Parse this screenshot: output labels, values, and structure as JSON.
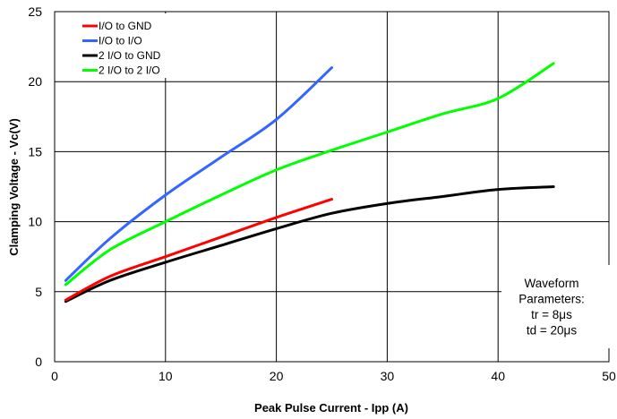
{
  "chart_data": {
    "type": "line",
    "xlabel": "Peak Pulse Current - Ipp (A)",
    "ylabel": "Clamping Voltage - Vc(V)",
    "xlim": [
      0,
      50
    ],
    "ylim": [
      0,
      25
    ],
    "x_ticks": [
      "0",
      "10",
      "20",
      "30",
      "40",
      "50"
    ],
    "y_ticks": [
      "0",
      "5",
      "10",
      "15",
      "20",
      "25"
    ],
    "grid": true,
    "legend_position": "top-left",
    "series": [
      {
        "name": "I/O to GND",
        "color": "#ff0000",
        "points": [
          [
            1,
            4.4
          ],
          [
            5,
            6.1
          ],
          [
            10,
            7.5
          ],
          [
            15,
            8.9
          ],
          [
            20,
            10.3
          ],
          [
            25,
            11.6
          ]
        ]
      },
      {
        "name": "I/O to I/O",
        "color": "#3366ff",
        "points": [
          [
            1,
            5.8
          ],
          [
            5,
            8.8
          ],
          [
            10,
            11.9
          ],
          [
            15,
            14.6
          ],
          [
            20,
            17.3
          ],
          [
            25,
            21.0
          ]
        ]
      },
      {
        "name": "2 I/O to GND",
        "color": "#000000",
        "points": [
          [
            1,
            4.3
          ],
          [
            5,
            5.8
          ],
          [
            10,
            7.1
          ],
          [
            15,
            8.3
          ],
          [
            20,
            9.5
          ],
          [
            25,
            10.6
          ],
          [
            30,
            11.3
          ],
          [
            35,
            11.8
          ],
          [
            40,
            12.3
          ],
          [
            45,
            12.5
          ]
        ]
      },
      {
        "name": "2 I/O to 2 I/O",
        "color": "#00ff00",
        "points": [
          [
            1,
            5.5
          ],
          [
            5,
            8.0
          ],
          [
            10,
            10.0
          ],
          [
            15,
            11.9
          ],
          [
            20,
            13.7
          ],
          [
            25,
            15.1
          ],
          [
            30,
            16.4
          ],
          [
            35,
            17.7
          ],
          [
            40,
            18.8
          ],
          [
            45,
            21.3
          ]
        ]
      }
    ],
    "annotation": {
      "lines": [
        "Waveform",
        "Parameters:",
        "tr = 8μs",
        "td = 20μs"
      ]
    }
  }
}
